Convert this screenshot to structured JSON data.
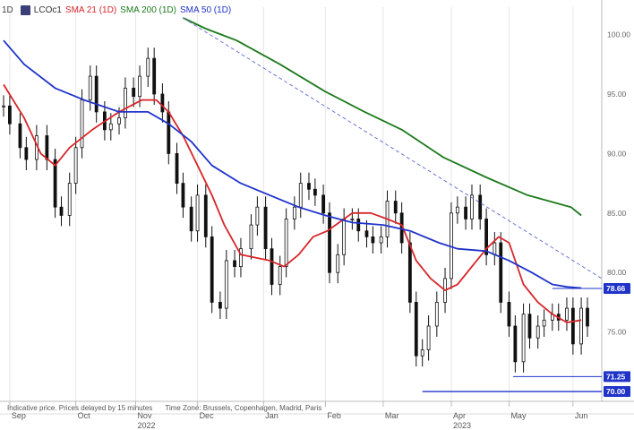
{
  "legend": {
    "interval": "1D",
    "ric": "LCOc1",
    "ric_icon": "chart-badge-icon",
    "sma21": "SMA 21 (1D)",
    "sma200": "SMA 200 (1D)",
    "sma50": "SMA 50 (1D)"
  },
  "footnote": {
    "indicative": "Indicative price. Prices delayed by 15 minutes",
    "timezone": "Time Zone: Brussels, Copenhagen, Madrid, Paris"
  },
  "colors": {
    "sma21": "#d7262a",
    "sma200": "#1c7a1c",
    "sma50": "#1f33c9",
    "price": "#111111",
    "label": "#1f33c9",
    "trend": "#6a75d8"
  },
  "chart_data": {
    "type": "candlestick",
    "y_axis": {
      "ticks": [
        70.0,
        75.0,
        80.0,
        85.0,
        90.0,
        95.0,
        100.0
      ],
      "ylim": [
        69.4,
        101.4
      ],
      "position": "right"
    },
    "x_axis": {
      "month_labels": [
        "Sep",
        "Oct",
        "Nov",
        "Dec",
        "Jan",
        "Feb",
        "Mar",
        "Apr",
        "May",
        "Jun"
      ],
      "month_dates": [
        "2022-09-01",
        "2022-10-03",
        "2022-11-01",
        "2022-12-01",
        "2023-01-02",
        "2023-02-01",
        "2023-03-01",
        "2023-04-03",
        "2023-05-01",
        "2023-06-01"
      ],
      "year_labels": [
        "2022",
        "2023"
      ],
      "year_dates": [
        "2022-11-01",
        "2023-04-03"
      ],
      "range": [
        "2022-08-29",
        "2023-06-08"
      ]
    },
    "price_labels": [
      78.66,
      71.25,
      70.0
    ],
    "horizontal_levels": [
      {
        "value": 78.66,
        "from": "2023-05-22",
        "to": "2023-06-08"
      },
      {
        "value": 71.25,
        "from": "2023-05-03",
        "to": "2023-06-08"
      },
      {
        "value": 70.0,
        "from": "2023-03-20",
        "to": "2023-06-08"
      }
    ],
    "trendline": {
      "from": {
        "date": "2022-11-24",
        "value": 101.4
      },
      "to": {
        "date": "2023-06-08",
        "value": 79.8
      }
    },
    "close": [
      [
        "2022-08-29",
        94.0
      ],
      [
        "2022-09-01",
        92.5
      ],
      [
        "2022-09-06",
        90.5
      ],
      [
        "2022-09-09",
        89.5
      ],
      [
        "2022-09-14",
        91.5
      ],
      [
        "2022-09-19",
        89.5
      ],
      [
        "2022-09-23",
        85.5
      ],
      [
        "2022-09-26",
        84.8
      ],
      [
        "2022-09-30",
        87.5
      ],
      [
        "2022-10-03",
        90.5
      ],
      [
        "2022-10-06",
        94.5
      ],
      [
        "2022-10-10",
        96.5
      ],
      [
        "2022-10-13",
        93.5
      ],
      [
        "2022-10-17",
        92.0
      ],
      [
        "2022-10-20",
        92.5
      ],
      [
        "2022-10-24",
        93.0
      ],
      [
        "2022-10-27",
        95.5
      ],
      [
        "2022-10-31",
        94.8
      ],
      [
        "2022-11-03",
        96.5
      ],
      [
        "2022-11-07",
        98.0
      ],
      [
        "2022-11-10",
        95.0
      ],
      [
        "2022-11-14",
        93.5
      ],
      [
        "2022-11-17",
        90.0
      ],
      [
        "2022-11-21",
        87.5
      ],
      [
        "2022-11-24",
        85.5
      ],
      [
        "2022-11-28",
        83.5
      ],
      [
        "2022-12-01",
        86.5
      ],
      [
        "2022-12-05",
        83.0
      ],
      [
        "2022-12-08",
        77.5
      ],
      [
        "2022-12-12",
        77.0
      ],
      [
        "2022-12-15",
        81.0
      ],
      [
        "2022-12-19",
        80.5
      ],
      [
        "2022-12-22",
        82.0
      ],
      [
        "2022-12-27",
        84.0
      ],
      [
        "2022-12-30",
        85.5
      ],
      [
        "2023-01-03",
        82.0
      ],
      [
        "2023-01-06",
        79.0
      ],
      [
        "2023-01-10",
        80.5
      ],
      [
        "2023-01-13",
        84.5
      ],
      [
        "2023-01-17",
        85.5
      ],
      [
        "2023-01-20",
        87.5
      ],
      [
        "2023-01-24",
        87.0
      ],
      [
        "2023-01-27",
        86.5
      ],
      [
        "2023-01-31",
        85.0
      ],
      [
        "2023-02-03",
        80.0
      ],
      [
        "2023-02-07",
        81.5
      ],
      [
        "2023-02-10",
        84.5
      ],
      [
        "2023-02-14",
        84.5
      ],
      [
        "2023-02-17",
        83.5
      ],
      [
        "2023-02-21",
        83.0
      ],
      [
        "2023-02-24",
        82.5
      ],
      [
        "2023-02-28",
        83.0
      ],
      [
        "2023-03-03",
        86.0
      ],
      [
        "2023-03-07",
        85.0
      ],
      [
        "2023-03-10",
        82.5
      ],
      [
        "2023-03-14",
        77.5
      ],
      [
        "2023-03-17",
        73.0
      ],
      [
        "2023-03-20",
        73.5
      ],
      [
        "2023-03-23",
        75.5
      ],
      [
        "2023-03-27",
        77.5
      ],
      [
        "2023-03-31",
        79.5
      ],
      [
        "2023-04-03",
        85.0
      ],
      [
        "2023-04-06",
        85.5
      ],
      [
        "2023-04-10",
        84.5
      ],
      [
        "2023-04-13",
        86.5
      ],
      [
        "2023-04-17",
        84.5
      ],
      [
        "2023-04-20",
        81.5
      ],
      [
        "2023-04-24",
        82.5
      ],
      [
        "2023-04-27",
        77.5
      ],
      [
        "2023-05-01",
        75.5
      ],
      [
        "2023-05-04",
        72.5
      ],
      [
        "2023-05-08",
        76.5
      ],
      [
        "2023-05-11",
        74.5
      ],
      [
        "2023-05-15",
        75.5
      ],
      [
        "2023-05-18",
        76.0
      ],
      [
        "2023-05-22",
        76.5
      ],
      [
        "2023-05-25",
        76.0
      ],
      [
        "2023-05-29",
        77.0
      ],
      [
        "2023-06-01",
        74.0
      ],
      [
        "2023-06-05",
        77.0
      ],
      [
        "2023-06-08",
        75.5
      ]
    ],
    "series": [
      {
        "name": "SMA 21 (1D)",
        "values": [
          [
            "2022-08-29",
            95.8
          ],
          [
            "2022-09-08",
            93.0
          ],
          [
            "2022-09-16",
            90.0
          ],
          [
            "2022-09-23",
            89.0
          ],
          [
            "2022-09-30",
            90.5
          ],
          [
            "2022-10-11",
            92.0
          ],
          [
            "2022-10-24",
            93.5
          ],
          [
            "2022-11-04",
            94.5
          ],
          [
            "2022-11-11",
            94.5
          ],
          [
            "2022-11-17",
            93.5
          ],
          [
            "2022-11-24",
            91.5
          ],
          [
            "2022-12-01",
            89.0
          ],
          [
            "2022-12-08",
            86.5
          ],
          [
            "2022-12-14",
            84.0
          ],
          [
            "2022-12-22",
            81.5
          ],
          [
            "2023-01-05",
            81.0
          ],
          [
            "2023-01-12",
            80.5
          ],
          [
            "2023-01-19",
            81.5
          ],
          [
            "2023-01-26",
            83.0
          ],
          [
            "2023-02-02",
            83.5
          ],
          [
            "2023-02-14",
            85.0
          ],
          [
            "2023-02-23",
            85.0
          ],
          [
            "2023-03-03",
            84.5
          ],
          [
            "2023-03-10",
            84.0
          ],
          [
            "2023-03-17",
            81.0
          ],
          [
            "2023-03-24",
            79.5
          ],
          [
            "2023-03-31",
            78.5
          ],
          [
            "2023-04-06",
            79.0
          ],
          [
            "2023-04-13",
            80.5
          ],
          [
            "2023-04-20",
            82.0
          ],
          [
            "2023-04-26",
            83.0
          ],
          [
            "2023-05-01",
            82.5
          ],
          [
            "2023-05-08",
            79.0
          ],
          [
            "2023-05-15",
            77.5
          ],
          [
            "2023-05-22",
            76.5
          ],
          [
            "2023-05-29",
            75.8
          ],
          [
            "2023-06-05",
            76.0
          ]
        ]
      },
      {
        "name": "SMA 200 (1D)",
        "values": [
          [
            "2022-11-24",
            101.4
          ],
          [
            "2022-12-05",
            100.5
          ],
          [
            "2022-12-20",
            99.5
          ],
          [
            "2023-01-10",
            97.5
          ],
          [
            "2023-02-01",
            95.2
          ],
          [
            "2023-02-20",
            93.5
          ],
          [
            "2023-03-10",
            92.0
          ],
          [
            "2023-03-30",
            89.7
          ],
          [
            "2023-04-20",
            88.0
          ],
          [
            "2023-05-10",
            86.5
          ],
          [
            "2023-05-31",
            85.5
          ],
          [
            "2023-06-05",
            84.8
          ]
        ]
      },
      {
        "name": "SMA 50 (1D)",
        "values": [
          [
            "2022-08-29",
            99.5
          ],
          [
            "2022-09-08",
            97.5
          ],
          [
            "2022-09-23",
            95.5
          ],
          [
            "2022-10-07",
            94.5
          ],
          [
            "2022-10-24",
            93.5
          ],
          [
            "2022-11-07",
            93.5
          ],
          [
            "2022-11-17",
            92.5
          ],
          [
            "2022-11-28",
            91.0
          ],
          [
            "2022-12-08",
            89.0
          ],
          [
            "2022-12-22",
            87.5
          ],
          [
            "2023-01-05",
            86.5
          ],
          [
            "2023-01-19",
            85.5
          ],
          [
            "2023-02-01",
            84.8
          ],
          [
            "2023-02-14",
            84.2
          ],
          [
            "2023-03-01",
            84.0
          ],
          [
            "2023-03-14",
            83.5
          ],
          [
            "2023-03-28",
            82.5
          ],
          [
            "2023-04-06",
            82.0
          ],
          [
            "2023-04-20",
            81.8
          ],
          [
            "2023-05-01",
            81.0
          ],
          [
            "2023-05-12",
            80.0
          ],
          [
            "2023-05-22",
            79.0
          ],
          [
            "2023-05-29",
            78.8
          ],
          [
            "2023-06-05",
            78.7
          ]
        ]
      }
    ]
  }
}
